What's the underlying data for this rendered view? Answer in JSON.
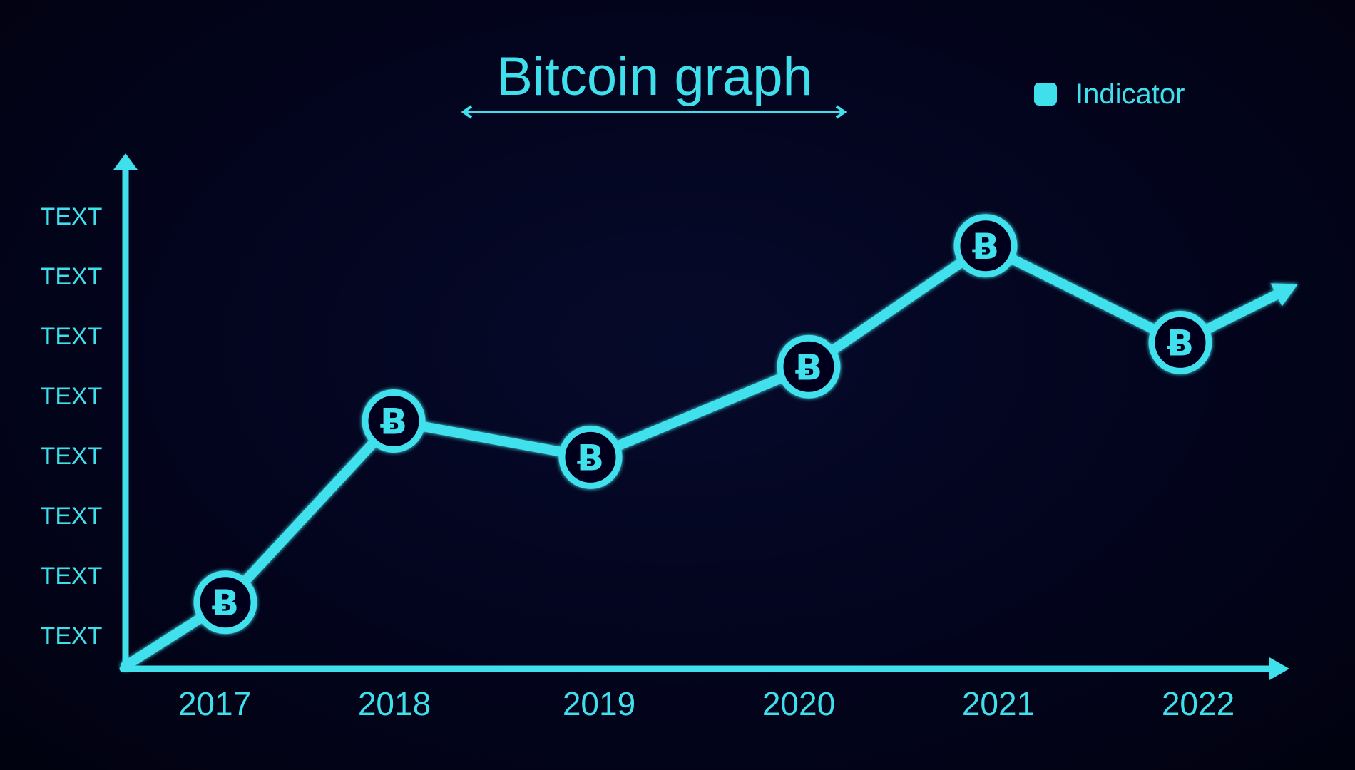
{
  "chart_data": {
    "type": "line",
    "title": "Bitcoin graph",
    "legend": {
      "label": "Indicator",
      "placement": "top-right"
    },
    "categories": [
      "2017",
      "2018",
      "2019",
      "2020",
      "2021",
      "2022"
    ],
    "y_tick_labels": [
      "TEXT",
      "TEXT",
      "TEXT",
      "TEXT",
      "TEXT",
      "TEXT",
      "TEXT",
      "TEXT"
    ],
    "ylim": [
      0,
      8
    ],
    "series": [
      {
        "name": "Indicator",
        "values": [
          1.1,
          4.1,
          3.5,
          5.0,
          7.0,
          5.4
        ]
      }
    ],
    "marker_icon": "bitcoin-icon",
    "marker_glyph": "Ƀ",
    "grid": false,
    "colors": {
      "background": "#03041d",
      "accent": "#3fe0ec"
    }
  }
}
